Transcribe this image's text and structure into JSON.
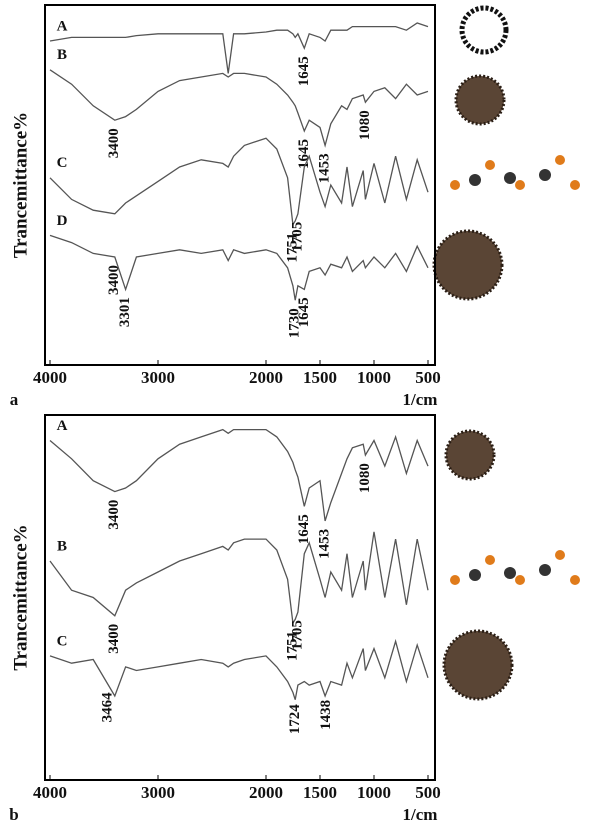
{
  "chart_data": [
    {
      "type": "line",
      "label": "a",
      "x_label": "1/cm",
      "y_label": "Trancemittance%",
      "xlim": [
        4000,
        500
      ],
      "xticks": [
        4000,
        3000,
        2000,
        1500,
        1000,
        500
      ],
      "ylim": [
        0,
        100
      ],
      "x": [
        4000,
        3800,
        3600,
        3400,
        3300,
        3200,
        3000,
        2800,
        2600,
        2400,
        2350,
        2300,
        2200,
        2000,
        1900,
        1800,
        1751,
        1730,
        1705,
        1645,
        1600,
        1500,
        1453,
        1400,
        1300,
        1250,
        1200,
        1100,
        1080,
        1000,
        900,
        800,
        700,
        600,
        500
      ],
      "series": [
        {
          "name": "A",
          "color": "#555555",
          "values": [
            90,
            91,
            91,
            91,
            91,
            91.5,
            92,
            92,
            92,
            92,
            81,
            92,
            92,
            92.5,
            93,
            93,
            92,
            91,
            92,
            88,
            92,
            91,
            90,
            93,
            93,
            93,
            94,
            94,
            94,
            94,
            94,
            94,
            93,
            95,
            94
          ],
          "peaks": [
            1645
          ]
        },
        {
          "name": "B",
          "color": "#555555",
          "values": [
            82,
            78,
            72,
            68,
            69,
            71,
            76,
            79,
            80,
            81,
            80,
            81,
            81,
            80,
            78,
            75,
            73,
            72,
            70,
            65,
            68,
            66,
            61,
            67,
            72,
            71,
            74,
            75,
            73,
            76,
            77,
            74,
            78,
            75,
            76
          ],
          "peaks": [
            3400,
            1645,
            1453,
            1080
          ]
        },
        {
          "name": "C",
          "color": "#555555",
          "values": [
            52,
            46,
            43,
            42,
            45,
            47,
            51,
            55,
            57,
            56,
            55,
            58,
            61,
            63,
            60,
            52,
            39,
            40,
            42,
            55,
            58,
            48,
            44,
            50,
            45,
            55,
            44,
            54,
            46,
            56,
            45,
            58,
            46,
            57,
            48
          ],
          "peaks": [
            1751,
            1705
          ]
        },
        {
          "name": "D",
          "color": "#555555",
          "values": [
            36,
            34,
            31,
            30,
            21,
            30,
            31,
            32,
            31,
            32,
            29,
            32,
            31,
            32,
            31,
            27,
            22,
            18,
            22,
            21,
            26,
            27,
            25,
            28,
            27,
            30,
            26,
            29,
            27,
            30,
            27,
            31,
            26,
            33,
            27
          ],
          "peaks": [
            3400,
            3301,
            1730,
            1645
          ]
        }
      ]
    },
    {
      "type": "line",
      "label": "b",
      "x_label": "1/cm",
      "y_label": "Trancemittance%",
      "xlim": [
        4000,
        500
      ],
      "xticks": [
        4000,
        3000,
        2000,
        1500,
        1000,
        500
      ],
      "ylim": [
        0,
        100
      ],
      "x": [
        4000,
        3800,
        3600,
        3400,
        3300,
        3200,
        3000,
        2800,
        2600,
        2400,
        2350,
        2300,
        2200,
        2000,
        1900,
        1800,
        1751,
        1730,
        1705,
        1645,
        1600,
        1500,
        1453,
        1400,
        1300,
        1250,
        1200,
        1100,
        1080,
        1000,
        900,
        800,
        700,
        600,
        500
      ],
      "series": [
        {
          "name": "A",
          "color": "#555555",
          "values": [
            93,
            88,
            82,
            79,
            80,
            82,
            88,
            92,
            94,
            96,
            95,
            96,
            96,
            96,
            94,
            90,
            87,
            85,
            83,
            75,
            80,
            82,
            71,
            76,
            84,
            88,
            91,
            92,
            89,
            93,
            86,
            94,
            84,
            93,
            86
          ],
          "peaks": [
            3400,
            1645,
            1453,
            1080
          ]
        },
        {
          "name": "B",
          "color": "#555555",
          "values": [
            60,
            52,
            50,
            45,
            52,
            54,
            57,
            60,
            62,
            64,
            63,
            65,
            66,
            66,
            63,
            55,
            43,
            44,
            46,
            62,
            65,
            55,
            50,
            57,
            52,
            62,
            50,
            60,
            52,
            68,
            50,
            66,
            48,
            66,
            52
          ],
          "peaks": [
            3400,
            1751,
            1705
          ]
        },
        {
          "name": "C",
          "color": "#555555",
          "values": [
            34,
            32,
            33,
            23,
            31,
            30,
            31,
            32,
            33,
            32,
            31,
            32,
            33,
            34,
            31,
            27,
            24,
            22,
            26,
            27,
            26,
            27,
            23,
            27,
            26,
            32,
            28,
            36,
            30,
            36,
            28,
            38,
            27,
            37,
            28
          ],
          "peaks": [
            3464,
            1724,
            1438
          ]
        }
      ]
    }
  ]
}
